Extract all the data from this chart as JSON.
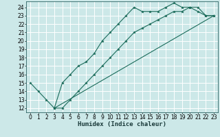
{
  "title": "",
  "xlabel": "Humidex (Indice chaleur)",
  "bg_color": "#cce8e8",
  "grid_color": "#ffffff",
  "line_color": "#1a6b5a",
  "xlim": [
    -0.5,
    23.5
  ],
  "ylim": [
    11.5,
    24.7
  ],
  "xticks": [
    0,
    1,
    2,
    3,
    4,
    5,
    6,
    7,
    8,
    9,
    10,
    11,
    12,
    13,
    14,
    15,
    16,
    17,
    18,
    19,
    20,
    21,
    22,
    23
  ],
  "yticks": [
    12,
    13,
    14,
    15,
    16,
    17,
    18,
    19,
    20,
    21,
    22,
    23,
    24
  ],
  "line1_x": [
    0,
    1,
    2,
    3,
    4,
    5,
    6,
    7,
    8,
    9,
    10,
    11,
    12,
    13,
    14,
    15,
    16,
    17,
    18,
    19,
    20,
    21,
    22,
    23
  ],
  "line1_y": [
    15,
    14,
    13,
    12,
    15,
    16,
    17,
    17.5,
    18.5,
    20,
    21,
    22,
    23,
    24,
    23.5,
    23.5,
    23.5,
    24,
    24.5,
    24,
    24,
    23.5,
    23,
    23
  ],
  "line2_x": [
    3,
    4,
    5,
    6,
    7,
    8,
    9,
    10,
    11,
    12,
    13,
    14,
    15,
    16,
    17,
    18,
    19,
    20,
    21,
    22,
    23
  ],
  "line2_y": [
    12,
    12,
    13,
    14,
    15,
    16,
    17,
    18,
    19,
    20,
    21,
    21.5,
    22,
    22.5,
    23,
    23.5,
    23.5,
    24,
    24,
    23,
    23
  ],
  "line3_x": [
    3,
    23
  ],
  "line3_y": [
    12,
    23
  ],
  "tick_fontsize": 5.5,
  "xlabel_fontsize": 6.5
}
